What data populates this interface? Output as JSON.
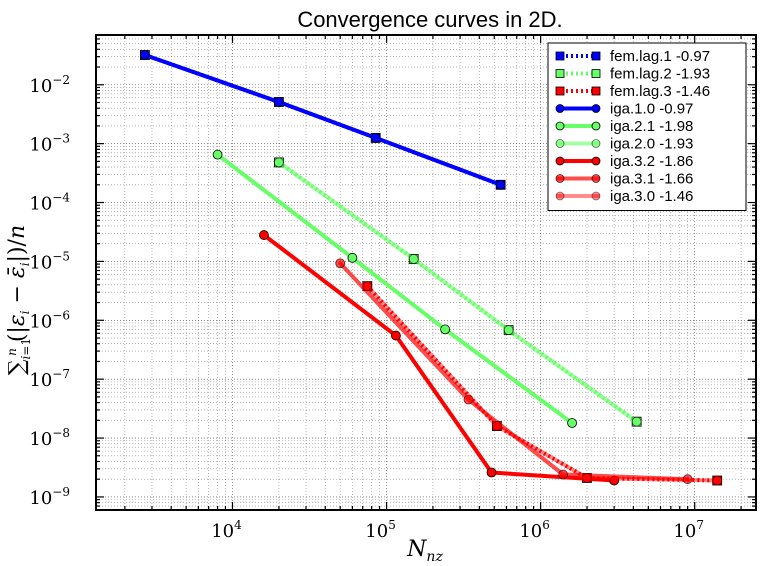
{
  "chart_data": {
    "type": "line",
    "title": "Convergence curves in 2D.",
    "xlabel": "N_nz",
    "ylabel": "∑_{i=1}^{n} (|ε_i − ε̄_i|)/n",
    "xscale": "log",
    "yscale": "log",
    "xlim": [
      1300,
      25000000
    ],
    "ylim": [
      6e-10,
      0.07
    ],
    "grid": true,
    "legend_position": "top-right",
    "x_ticks": [
      {
        "base": "10",
        "exp": "4",
        "value": 10000
      },
      {
        "base": "10",
        "exp": "5",
        "value": 100000
      },
      {
        "base": "10",
        "exp": "6",
        "value": 1000000
      },
      {
        "base": "10",
        "exp": "7",
        "value": 10000000
      }
    ],
    "y_ticks": [
      {
        "base": "10",
        "exp": "−2",
        "value": 0.01
      },
      {
        "base": "10",
        "exp": "−3",
        "value": 0.001
      },
      {
        "base": "10",
        "exp": "−4",
        "value": 0.0001
      },
      {
        "base": "10",
        "exp": "−5",
        "value": 1e-05
      },
      {
        "base": "10",
        "exp": "−6",
        "value": 1e-06
      },
      {
        "base": "10",
        "exp": "−7",
        "value": 1e-07
      },
      {
        "base": "10",
        "exp": "−8",
        "value": 1e-08
      },
      {
        "base": "10",
        "exp": "−9",
        "value": 1e-09
      }
    ],
    "series": [
      {
        "name": "fem.lag.1 -0.97",
        "color": "#0000ff",
        "alpha": 1.0,
        "dash": "dotted",
        "marker": "square",
        "x": [
          2700,
          20000,
          85000,
          550000
        ],
        "y": [
          0.032,
          0.0051,
          0.00125,
          0.0002
        ]
      },
      {
        "name": "fem.lag.2 -1.93",
        "color": "#66ff66",
        "alpha": 1.0,
        "dash": "dotted",
        "marker": "square",
        "x": [
          20000,
          150000,
          620000,
          4200000
        ],
        "y": [
          0.00048,
          1.1e-05,
          6.8e-07,
          1.9e-08
        ]
      },
      {
        "name": "fem.lag.3 -1.46",
        "color": "#ff0000",
        "alpha": 1.0,
        "dash": "dotted",
        "marker": "square",
        "x": [
          75000,
          520000,
          2000000,
          14000000
        ],
        "y": [
          3.8e-06,
          1.6e-08,
          2.1e-09,
          1.9e-09
        ]
      },
      {
        "name": "iga.1.0 -0.97",
        "color": "#0000ff",
        "alpha": 1.0,
        "dash": "solid",
        "marker": "circle",
        "x": [
          2700,
          20000,
          85000,
          550000
        ],
        "y": [
          0.032,
          0.0051,
          0.00125,
          0.0002
        ]
      },
      {
        "name": "iga.2.1 -1.98",
        "color": "#66ff66",
        "alpha": 1.0,
        "dash": "solid",
        "marker": "circle",
        "x": [
          8000,
          60000,
          240000,
          1600000
        ],
        "y": [
          0.00065,
          1.15e-05,
          7e-07,
          1.8e-08
        ]
      },
      {
        "name": "iga.2.0 -1.93",
        "color": "#66ff66",
        "alpha": 0.6,
        "dash": "solid",
        "marker": "circle",
        "x": [
          20000,
          150000,
          620000,
          4200000
        ],
        "y": [
          0.00048,
          1.1e-05,
          6.8e-07,
          1.9e-08
        ]
      },
      {
        "name": "iga.3.2 -1.86",
        "color": "#ff0000",
        "alpha": 1.0,
        "dash": "solid",
        "marker": "circle",
        "x": [
          16000,
          115000,
          480000,
          3000000
        ],
        "y": [
          2.8e-05,
          5.5e-07,
          2.6e-09,
          1.9e-09
        ]
      },
      {
        "name": "iga.3.1 -1.66",
        "color": "#ff0000",
        "alpha": 0.7,
        "dash": "solid",
        "marker": "circle",
        "x": [
          50000,
          340000,
          1400000,
          9000000
        ],
        "y": [
          9.3e-06,
          4.5e-08,
          2.4e-09,
          2e-09
        ]
      },
      {
        "name": "iga.3.0 -1.46",
        "color": "#ff0000",
        "alpha": 0.45,
        "dash": "solid",
        "marker": "circle",
        "x": [
          75000,
          520000,
          2000000,
          14000000
        ],
        "y": [
          3.8e-06,
          1.6e-08,
          2.1e-09,
          1.9e-09
        ]
      }
    ]
  }
}
